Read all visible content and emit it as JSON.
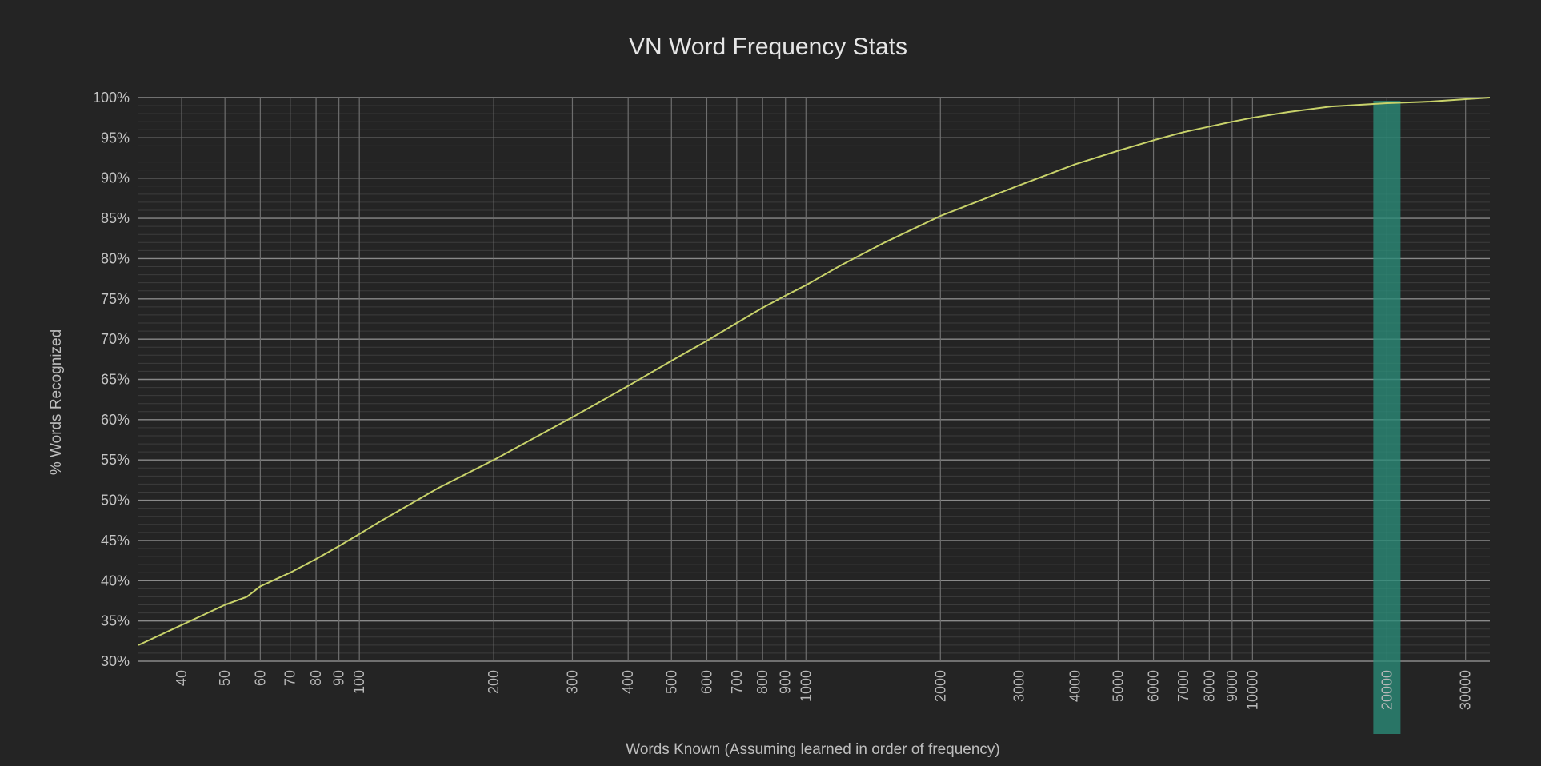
{
  "chart_data": {
    "type": "line",
    "title": "VN Word Frequency Stats",
    "xlabel": "Words Known (Assuming learned in order of frequency)",
    "ylabel": "% Words Recognized",
    "x_scale": "log",
    "xlim": [
      32,
      34000
    ],
    "ylim": [
      30,
      100
    ],
    "grid": true,
    "y_ticks": [
      30,
      35,
      40,
      45,
      50,
      55,
      60,
      65,
      70,
      75,
      80,
      85,
      90,
      95,
      100
    ],
    "y_tick_labels": [
      "30%",
      "35%",
      "40%",
      "45%",
      "50%",
      "55%",
      "60%",
      "65%",
      "70%",
      "75%",
      "80%",
      "85%",
      "90%",
      "95%",
      "100%"
    ],
    "x_ticks": [
      40,
      50,
      60,
      70,
      80,
      90,
      100,
      200,
      300,
      400,
      500,
      600,
      700,
      800,
      900,
      1000,
      2000,
      3000,
      4000,
      5000,
      6000,
      7000,
      8000,
      9000,
      10000,
      20000,
      30000
    ],
    "x_tick_labels": [
      "40",
      "50",
      "60",
      "70",
      "80",
      "90",
      "100",
      "200",
      "300",
      "400",
      "500",
      "600",
      "700",
      "800",
      "900",
      "1000",
      "2000",
      "3000",
      "4000",
      "5000",
      "6000",
      "7000",
      "8000",
      "9000",
      "10000",
      "20000",
      "30000"
    ],
    "highlight": {
      "x": 20000,
      "color": "#2a8c78"
    },
    "series": [
      {
        "color": "#c8d26a",
        "x": [
          32,
          40,
          50,
          56,
          60,
          70,
          80,
          90,
          100,
          110,
          150,
          200,
          300,
          400,
          500,
          600,
          700,
          800,
          900,
          1000,
          1200,
          1500,
          2000,
          3000,
          4000,
          5000,
          6000,
          7000,
          8000,
          9000,
          10000,
          12000,
          15000,
          20000,
          25000,
          30000,
          34000
        ],
        "y": [
          32,
          34.5,
          37,
          38,
          39.3,
          41,
          42.7,
          44.3,
          45.8,
          47.2,
          51.5,
          55,
          60.3,
          64.2,
          67.3,
          69.8,
          72,
          73.9,
          75.4,
          76.7,
          79.2,
          82,
          85.3,
          89.1,
          91.7,
          93.4,
          94.7,
          95.7,
          96.4,
          97,
          97.5,
          98.2,
          98.9,
          99.3,
          99.5,
          99.8,
          100
        ]
      }
    ]
  }
}
